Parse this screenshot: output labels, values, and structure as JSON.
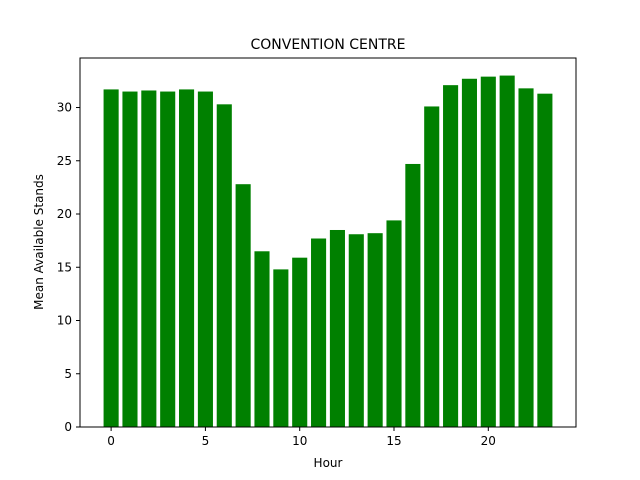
{
  "chart_data": {
    "type": "bar",
    "title": "CONVENTION CENTRE",
    "xlabel": "Hour",
    "ylabel": "Mean Available Stands",
    "x": [
      0,
      1,
      2,
      3,
      4,
      5,
      6,
      7,
      8,
      9,
      10,
      11,
      12,
      13,
      14,
      15,
      16,
      17,
      18,
      19,
      20,
      21,
      22,
      23
    ],
    "values": [
      31.7,
      31.5,
      31.6,
      31.5,
      31.7,
      31.5,
      30.3,
      22.8,
      16.5,
      14.8,
      15.9,
      17.7,
      18.5,
      18.1,
      18.2,
      19.4,
      24.7,
      30.1,
      32.1,
      32.7,
      32.9,
      33.0,
      31.8,
      31.3
    ],
    "xticks": [
      0,
      5,
      10,
      15,
      20
    ],
    "yticks": [
      0,
      5,
      10,
      15,
      20,
      25,
      30
    ],
    "xlim": [
      -1.65,
      24.65
    ],
    "ylim": [
      0,
      34.65
    ],
    "bar_color": "#008000",
    "grid": false
  }
}
